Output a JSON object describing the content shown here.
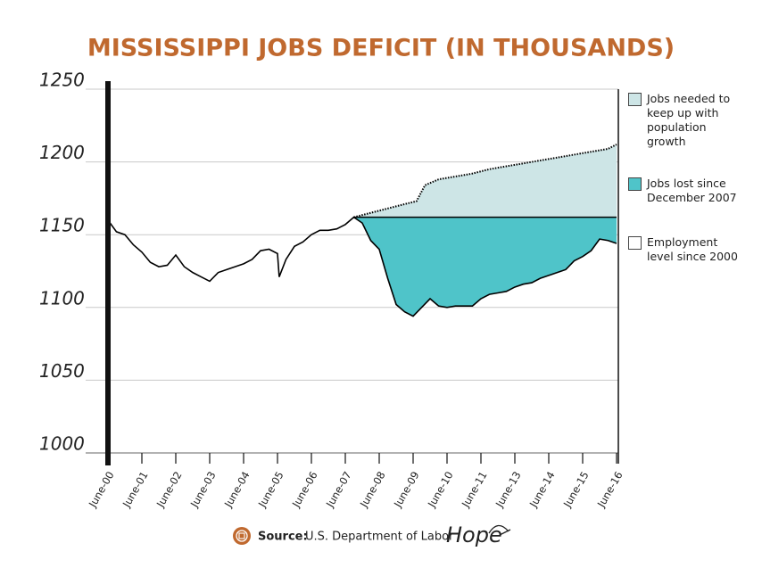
{
  "chart_data": {
    "type": "line",
    "title": "MISSISSIPPI JOBS DEFICIT (IN THOUSANDS)",
    "xlim": [
      0,
      15
    ],
    "xticks": [
      {
        "value": 0,
        "label": "June-00"
      },
      {
        "value": 1,
        "label": "June-01"
      },
      {
        "value": 2,
        "label": "June-02"
      },
      {
        "value": 3,
        "label": "June-03"
      },
      {
        "value": 4,
        "label": "June-04"
      },
      {
        "value": 5,
        "label": "June-05"
      },
      {
        "value": 6,
        "label": "June-06"
      },
      {
        "value": 7,
        "label": "June-07"
      },
      {
        "value": 8,
        "label": "June-08"
      },
      {
        "value": 9,
        "label": "June-09"
      },
      {
        "value": 10,
        "label": "June-10"
      },
      {
        "value": 11,
        "label": "June-11"
      },
      {
        "value": 12,
        "label": "June-13"
      },
      {
        "value": 13,
        "label": "June-14"
      },
      {
        "value": 14,
        "label": "June-15"
      },
      {
        "value": 15,
        "label": "June-16"
      }
    ],
    "ylim": [
      1000,
      1250
    ],
    "yticks": [
      1000,
      1050,
      1100,
      1150,
      1200,
      1250
    ],
    "grid": true,
    "legend": "right",
    "series": [
      {
        "name": "Jobs needed to keep up with population growth",
        "color": "#cde5e6",
        "line_style": "dotted",
        "x": [
          7.25,
          7.75,
          8.25,
          8.75,
          9.1,
          9.35,
          9.75,
          10.25,
          10.75,
          11.25,
          11.75,
          12.25,
          12.75,
          13.25,
          13.75,
          14.25,
          14.75,
          15
        ],
        "values": [
          1162,
          1165,
          1168,
          1171,
          1173,
          1184,
          1188,
          1190,
          1192,
          1195,
          1197,
          1199,
          1201,
          1203,
          1205,
          1207,
          1209,
          1212
        ]
      },
      {
        "name": "Jobs lost since December 2007",
        "color": "#4fc4c9",
        "reference": 1162,
        "from_x": 7.25
      },
      {
        "name": "Employment level since 2000",
        "color": "#ffffff",
        "line_color": "#000000",
        "x": [
          0,
          0.25,
          0.5,
          0.75,
          1,
          1.25,
          1.5,
          1.75,
          2,
          2.25,
          2.5,
          2.75,
          3,
          3.25,
          3.5,
          3.75,
          4,
          4.25,
          4.5,
          4.75,
          5,
          5.05,
          5.25,
          5.5,
          5.75,
          6,
          6.25,
          6.5,
          6.75,
          7,
          7.25,
          7.5,
          7.75,
          8,
          8.25,
          8.5,
          8.75,
          9,
          9.25,
          9.5,
          9.75,
          10,
          10.25,
          10.5,
          10.75,
          11,
          11.25,
          11.5,
          11.75,
          12,
          12.25,
          12.5,
          12.75,
          13,
          13.25,
          13.5,
          13.75,
          14,
          14.25,
          14.5,
          14.75,
          15
        ],
        "values": [
          1160,
          1152,
          1150,
          1143,
          1138,
          1131,
          1128,
          1129,
          1136,
          1128,
          1124,
          1121,
          1118,
          1124,
          1126,
          1128,
          1130,
          1133,
          1139,
          1140,
          1137,
          1121,
          1133,
          1142,
          1145,
          1150,
          1153,
          1153,
          1154,
          1157,
          1162,
          1158,
          1146,
          1140,
          1120,
          1102,
          1097,
          1094,
          1100,
          1106,
          1101,
          1100,
          1101,
          1101,
          1101,
          1106,
          1109,
          1110,
          1111,
          1114,
          1116,
          1117,
          1120,
          1122,
          1124,
          1126,
          1132,
          1135,
          1139,
          1147,
          1146,
          1144
        ]
      }
    ],
    "source_label": "Source:",
    "source": "U.S. Department of Labor",
    "logo": "Hope"
  }
}
